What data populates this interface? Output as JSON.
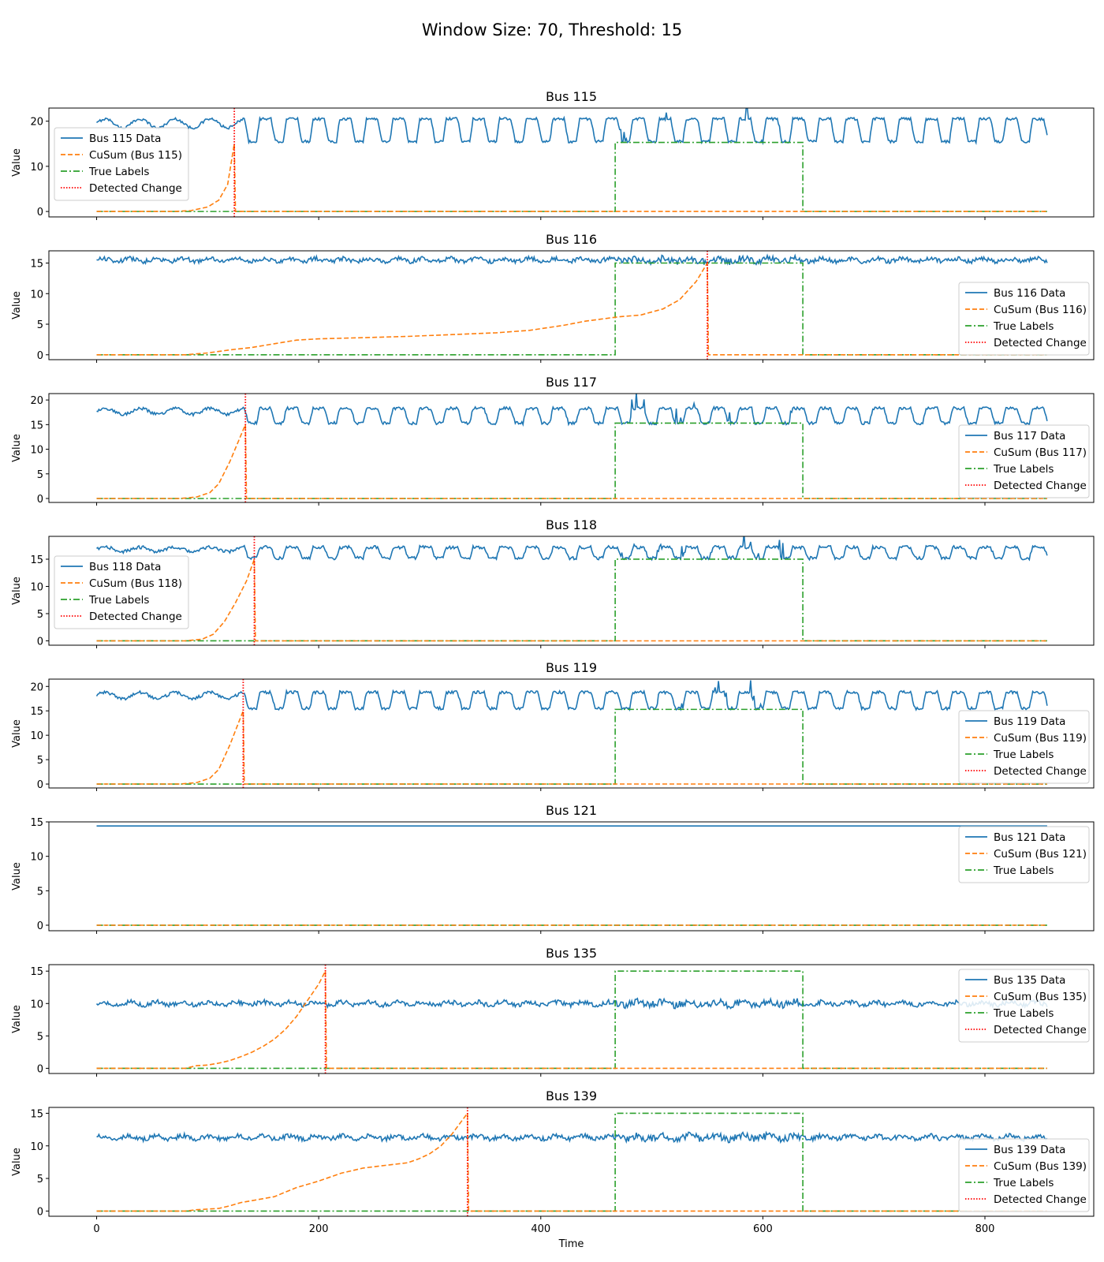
{
  "figure_title": "Window Size: 70, Threshold: 15",
  "x_axis_label": "Time",
  "y_axis_label": "Value",
  "x_ticks": [
    0,
    200,
    400,
    600,
    800
  ],
  "xlim": [
    -43,
    898
  ],
  "colors": {
    "data": "#1f77b4",
    "cusum": "#ff7f0e",
    "true": "#2ca02c",
    "detected": "#ff0000"
  },
  "chart_data": [
    {
      "type": "line",
      "title": "Bus 115",
      "ylim": [
        -1.2,
        22.9
      ],
      "y_ticks": [
        0,
        10,
        20
      ],
      "legend_position": "center-left",
      "legend": [
        "Bus 115 Data",
        "CuSum (Bus 115)",
        "True Labels",
        "Detected Change"
      ],
      "data": {
        "pattern": "oscillating",
        "base": 20.5,
        "low": 15.5,
        "amplitude": 5
      },
      "cusum": [
        [
          0,
          0
        ],
        [
          70,
          0
        ],
        [
          85,
          0.2
        ],
        [
          100,
          1.0
        ],
        [
          110,
          2.5
        ],
        [
          118,
          6
        ],
        [
          124,
          15
        ],
        [
          125,
          0
        ],
        [
          856,
          0
        ]
      ],
      "true_labels": {
        "start": 467,
        "end": 636,
        "high": 15.3,
        "length": 856
      },
      "detected_change": 124
    },
    {
      "type": "line",
      "title": "Bus 116",
      "ylim": [
        -0.8,
        17.0
      ],
      "y_ticks": [
        0,
        5,
        10,
        15
      ],
      "legend_position": "lower-right",
      "legend": [
        "Bus 116 Data",
        "CuSum (Bus 116)",
        "True Labels",
        "Detected Change"
      ],
      "data": {
        "pattern": "flat",
        "base": 15.5,
        "noise": 0.35
      },
      "cusum": [
        [
          0,
          0
        ],
        [
          80,
          0
        ],
        [
          100,
          0.3
        ],
        [
          120,
          0.8
        ],
        [
          140,
          1.2
        ],
        [
          160,
          1.8
        ],
        [
          180,
          2.4
        ],
        [
          200,
          2.6
        ],
        [
          240,
          2.8
        ],
        [
          280,
          3.0
        ],
        [
          320,
          3.3
        ],
        [
          360,
          3.6
        ],
        [
          390,
          4.0
        ],
        [
          420,
          4.8
        ],
        [
          440,
          5.5
        ],
        [
          470,
          6.2
        ],
        [
          490,
          6.5
        ],
        [
          510,
          7.5
        ],
        [
          525,
          9
        ],
        [
          540,
          12
        ],
        [
          550,
          15
        ],
        [
          551,
          0
        ],
        [
          856,
          0
        ]
      ],
      "true_labels": {
        "start": 467,
        "end": 636,
        "high": 15.0,
        "length": 856
      },
      "detected_change": 550
    },
    {
      "type": "line",
      "title": "Bus 117",
      "ylim": [
        -0.8,
        21.3
      ],
      "y_ticks": [
        0,
        5,
        10,
        15,
        20
      ],
      "legend_position": "lower-right",
      "legend": [
        "Bus 117 Data",
        "CuSum (Bus 117)",
        "True Labels",
        "Detected Change"
      ],
      "data": {
        "pattern": "oscillating",
        "base": 18.3,
        "low": 15.3,
        "amplitude": 3
      },
      "cusum": [
        [
          0,
          0
        ],
        [
          75,
          0
        ],
        [
          90,
          0.3
        ],
        [
          102,
          1.2
        ],
        [
          110,
          3
        ],
        [
          120,
          7.5
        ],
        [
          134,
          15
        ],
        [
          135,
          0
        ],
        [
          856,
          0
        ]
      ],
      "true_labels": {
        "start": 467,
        "end": 636,
        "high": 15.3,
        "length": 856
      },
      "detected_change": 134
    },
    {
      "type": "line",
      "title": "Bus 118",
      "ylim": [
        -0.8,
        19.2
      ],
      "y_ticks": [
        0,
        5,
        10,
        15
      ],
      "legend_position": "center-left",
      "legend": [
        "Bus 118 Data",
        "CuSum (Bus 118)",
        "True Labels",
        "Detected Change"
      ],
      "data": {
        "pattern": "oscillating",
        "base": 17.2,
        "low": 15.2,
        "amplitude": 2
      },
      "cusum": [
        [
          0,
          0
        ],
        [
          80,
          0
        ],
        [
          95,
          0.3
        ],
        [
          105,
          1.2
        ],
        [
          115,
          3.5
        ],
        [
          125,
          7
        ],
        [
          135,
          11
        ],
        [
          142,
          15
        ],
        [
          143,
          0
        ],
        [
          856,
          0
        ]
      ],
      "true_labels": {
        "start": 467,
        "end": 636,
        "high": 15.0,
        "length": 856
      },
      "detected_change": 142
    },
    {
      "type": "line",
      "title": "Bus 119",
      "ylim": [
        -0.8,
        21.5
      ],
      "y_ticks": [
        0,
        5,
        10,
        15,
        20
      ],
      "legend_position": "lower-right",
      "legend": [
        "Bus 119 Data",
        "CuSum (Bus 119)",
        "True Labels",
        "Detected Change"
      ],
      "data": {
        "pattern": "oscillating",
        "base": 18.8,
        "low": 15.5,
        "amplitude": 3.3
      },
      "cusum": [
        [
          0,
          0
        ],
        [
          75,
          0
        ],
        [
          90,
          0.3
        ],
        [
          102,
          1.2
        ],
        [
          110,
          3
        ],
        [
          120,
          8
        ],
        [
          132,
          15
        ],
        [
          133,
          0
        ],
        [
          856,
          0
        ]
      ],
      "true_labels": {
        "start": 467,
        "end": 636,
        "high": 15.3,
        "length": 856
      },
      "detected_change": 132
    },
    {
      "type": "line",
      "title": "Bus 121",
      "ylim": [
        -0.8,
        15.0
      ],
      "y_ticks": [
        0,
        5,
        10,
        15
      ],
      "legend_position": "upper-right",
      "legend": [
        "Bus 121 Data",
        "CuSum (Bus 121)",
        "True Labels"
      ],
      "data": {
        "pattern": "constant",
        "base": 14.4
      },
      "cusum": [
        [
          0,
          0
        ],
        [
          856,
          0
        ]
      ],
      "true_labels": {
        "start": null,
        "end": null,
        "high": 0,
        "length": 856
      },
      "detected_change": null
    },
    {
      "type": "line",
      "title": "Bus 135",
      "ylim": [
        -0.8,
        16.0
      ],
      "y_ticks": [
        0,
        5,
        10,
        15
      ],
      "legend_position": "upper-right",
      "legend": [
        "Bus 135 Data",
        "CuSum (Bus 135)",
        "True Labels",
        "Detected Change"
      ],
      "data": {
        "pattern": "flat",
        "base": 10.0,
        "noise": 0.35
      },
      "cusum": [
        [
          0,
          0
        ],
        [
          80,
          0
        ],
        [
          90,
          0.4
        ],
        [
          100,
          0.5
        ],
        [
          110,
          0.8
        ],
        [
          120,
          1.2
        ],
        [
          130,
          1.8
        ],
        [
          140,
          2.5
        ],
        [
          150,
          3.4
        ],
        [
          160,
          4.5
        ],
        [
          170,
          6
        ],
        [
          180,
          8
        ],
        [
          190,
          10.5
        ],
        [
          200,
          13
        ],
        [
          206,
          15
        ],
        [
          207,
          0
        ],
        [
          856,
          0
        ]
      ],
      "true_labels": {
        "start": 467,
        "end": 636,
        "high": 15.0,
        "length": 856
      },
      "detected_change": 206
    },
    {
      "type": "line",
      "title": "Bus 139",
      "ylim": [
        -0.8,
        15.9
      ],
      "y_ticks": [
        0,
        5,
        10,
        15
      ],
      "legend_position": "lower-right",
      "legend": [
        "Bus 139 Data",
        "CuSum (Bus 139)",
        "True Labels",
        "Detected Change"
      ],
      "data": {
        "pattern": "flat",
        "base": 11.3,
        "noise": 0.35
      },
      "cusum": [
        [
          0,
          0
        ],
        [
          80,
          0
        ],
        [
          90,
          0.2
        ],
        [
          110,
          0.4
        ],
        [
          120,
          0.8
        ],
        [
          130,
          1.3
        ],
        [
          140,
          1.6
        ],
        [
          160,
          2.2
        ],
        [
          180,
          3.6
        ],
        [
          200,
          4.6
        ],
        [
          220,
          5.8
        ],
        [
          240,
          6.6
        ],
        [
          260,
          7.0
        ],
        [
          280,
          7.4
        ],
        [
          290,
          8
        ],
        [
          300,
          8.8
        ],
        [
          310,
          10
        ],
        [
          320,
          11.8
        ],
        [
          334,
          15
        ],
        [
          335,
          0
        ],
        [
          856,
          0
        ]
      ],
      "true_labels": {
        "start": 467,
        "end": 636,
        "high": 15.0,
        "length": 856
      },
      "detected_change": 334
    }
  ]
}
